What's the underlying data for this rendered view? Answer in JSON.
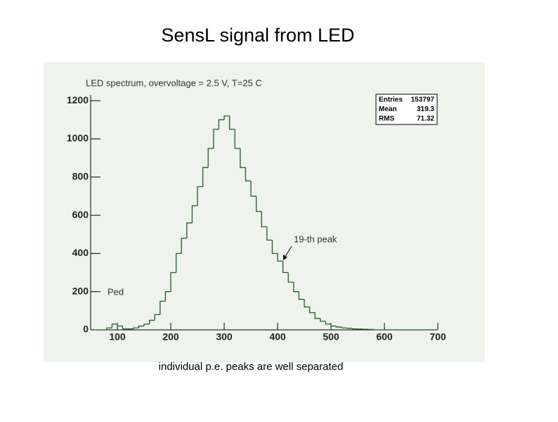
{
  "slide_title": "SensL signal from LED",
  "caption": "individual p.e. peaks are well separated",
  "chart_data": {
    "type": "histogram",
    "title": "LED spectrum, overvoltage = 2.5 V, T=25 C",
    "bins": [
      50,
      60,
      70,
      80,
      90,
      100,
      110,
      120,
      130,
      140,
      150,
      160,
      170,
      180,
      190,
      200,
      210,
      220,
      230,
      240,
      250,
      260,
      270,
      280,
      290,
      300,
      310,
      320,
      330,
      340,
      350,
      360,
      370,
      380,
      390,
      400,
      410,
      420,
      430,
      440,
      450,
      460,
      470,
      480,
      490,
      500,
      510,
      520,
      530,
      540,
      550,
      560,
      570,
      580,
      590,
      600,
      610,
      620,
      630,
      640,
      650,
      660,
      670,
      680,
      690,
      700
    ],
    "values": [
      0,
      0,
      0,
      10,
      30,
      20,
      5,
      5,
      10,
      20,
      30,
      50,
      80,
      150,
      200,
      300,
      400,
      480,
      560,
      650,
      750,
      850,
      950,
      1050,
      1100,
      1120,
      1050,
      950,
      850,
      780,
      700,
      620,
      540,
      470,
      400,
      360,
      300,
      250,
      200,
      160,
      120,
      90,
      60,
      45,
      30,
      20,
      15,
      10,
      8,
      5,
      4,
      3,
      2,
      0,
      0,
      0,
      0,
      0,
      0,
      0,
      0,
      0,
      0,
      0,
      0
    ],
    "color": "#1f5f1f",
    "xlim": [
      50,
      700
    ],
    "ylim": [
      0,
      1230
    ],
    "xticks": [
      100,
      200,
      300,
      400,
      500,
      600,
      700
    ],
    "yticks": [
      0,
      200,
      400,
      600,
      800,
      1000,
      1200
    ],
    "stats": [
      {
        "label": "Entries",
        "value": 153797
      },
      {
        "label": "Mean",
        "value": 319.3
      },
      {
        "label": "RMS",
        "value": 71.32
      }
    ],
    "annotations": [
      "19-th peak",
      "Ped"
    ]
  }
}
